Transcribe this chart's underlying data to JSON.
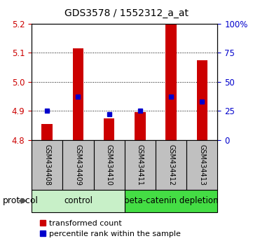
{
  "title": "GDS3578 / 1552312_a_at",
  "samples": [
    "GSM434408",
    "GSM434409",
    "GSM434410",
    "GSM434411",
    "GSM434412",
    "GSM434413"
  ],
  "red_values": [
    4.855,
    5.115,
    4.875,
    4.895,
    5.2,
    5.075
  ],
  "blue_values_pct": [
    25,
    37,
    22,
    25,
    37,
    33
  ],
  "y_min": 4.8,
  "y_max": 5.2,
  "y_ticks_red": [
    4.8,
    4.9,
    5.0,
    5.1,
    5.2
  ],
  "y_ticks_blue": [
    0,
    25,
    50,
    75,
    100
  ],
  "group_control_label": "control",
  "group_beta_label": "beta-catenin depletion",
  "group_control_color": "#c8f0c8",
  "group_beta_color": "#44dd44",
  "protocol_label": "protocol",
  "legend_red": "transformed count",
  "legend_blue": "percentile rank within the sample",
  "red_color": "#cc0000",
  "blue_color": "#0000cc",
  "bar_width": 0.35,
  "baseline": 4.8,
  "sample_box_color": "#c0c0c0",
  "title_fontsize": 10,
  "tick_fontsize": 8.5,
  "sample_fontsize": 7,
  "group_fontsize": 8.5,
  "legend_fontsize": 8
}
